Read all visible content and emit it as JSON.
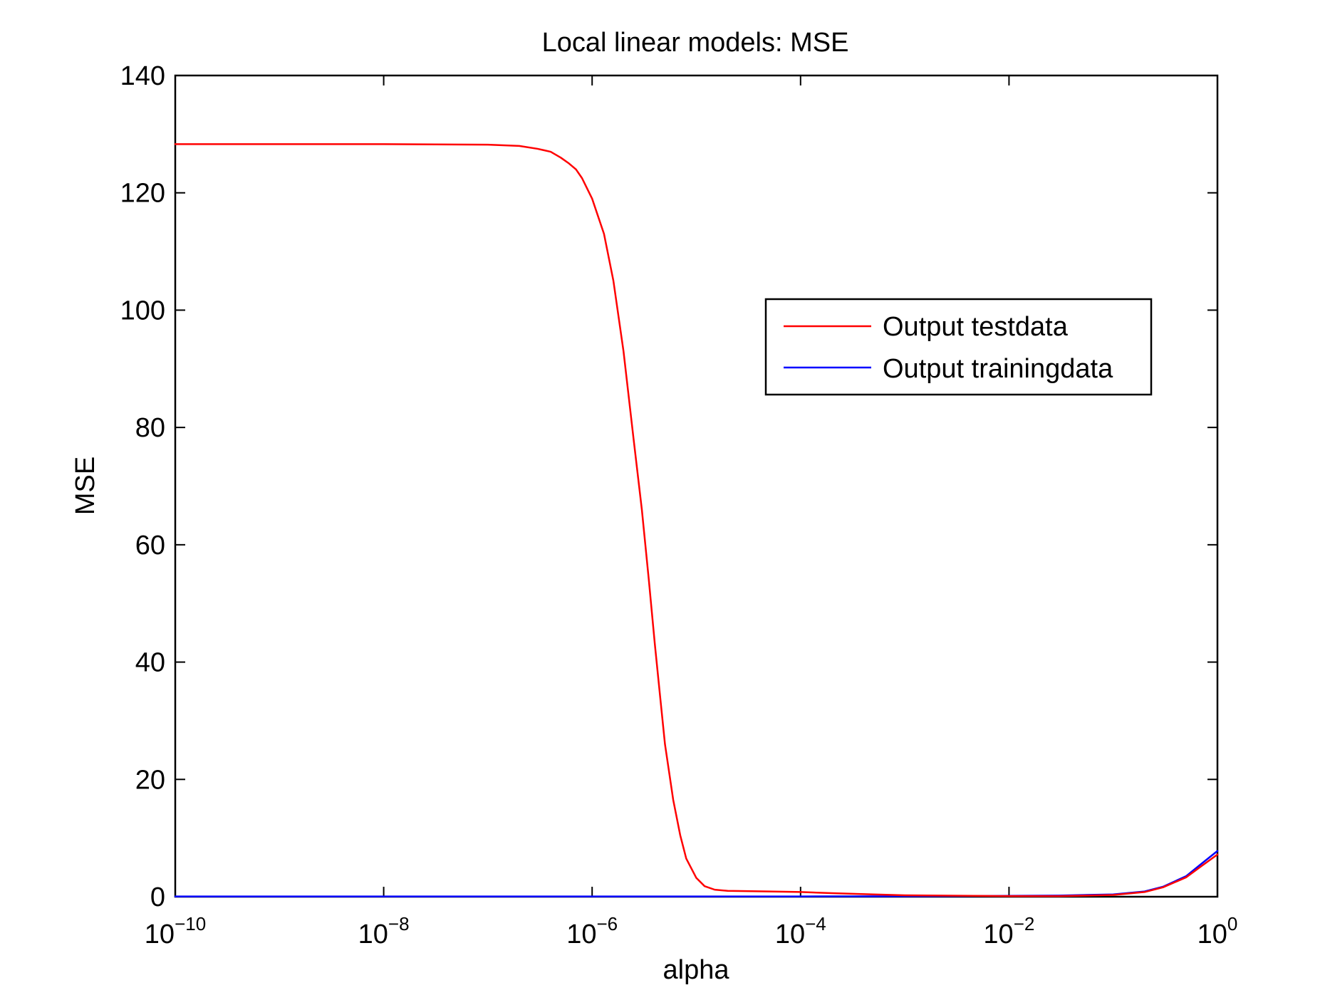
{
  "chart_data": {
    "type": "line",
    "title": "Local linear models: MSE",
    "xlabel": "alpha",
    "ylabel": "MSE",
    "xscale": "log",
    "xlim": [
      1e-10,
      1
    ],
    "ylim": [
      0,
      140
    ],
    "grid": false,
    "legend_position": "upper-right",
    "y_ticks": [
      "0",
      "20",
      "40",
      "60",
      "80",
      "100",
      "120",
      "140"
    ],
    "x_ticks": [
      {
        "base": "10",
        "exp": "−10"
      },
      {
        "base": "10",
        "exp": "−8"
      },
      {
        "base": "10",
        "exp": "−6"
      },
      {
        "base": "10",
        "exp": "−4"
      },
      {
        "base": "10",
        "exp": "−2"
      },
      {
        "base": "10",
        "exp": "0"
      }
    ],
    "series": [
      {
        "name": "Output testdata",
        "color": "#ff0000",
        "x": [
          1e-10,
          1e-09,
          1e-08,
          1e-07,
          2e-07,
          3e-07,
          4e-07,
          5e-07,
          6e-07,
          7e-07,
          8e-07,
          1e-06,
          1.3e-06,
          1.6e-06,
          2e-06,
          2.5e-06,
          3e-06,
          3.5e-06,
          4e-06,
          4.5e-06,
          5e-06,
          6e-06,
          7e-06,
          8e-06,
          1e-05,
          1.2e-05,
          1.5e-05,
          2e-05,
          3e-05,
          5e-05,
          0.0001,
          0.0002,
          0.0005,
          0.001,
          0.01,
          0.03,
          0.1,
          0.2,
          0.3,
          0.5,
          0.7,
          1.0
        ],
        "y": [
          128.3,
          128.3,
          128.3,
          128.2,
          128.0,
          127.5,
          127.0,
          126.0,
          125.0,
          124.0,
          122.5,
          119.0,
          113.0,
          105.0,
          93.0,
          78.0,
          66.0,
          54.0,
          43.0,
          34.0,
          26.0,
          16.5,
          10.5,
          6.5,
          3.2,
          1.8,
          1.2,
          1.0,
          0.95,
          0.9,
          0.8,
          0.6,
          0.4,
          0.25,
          0.1,
          0.1,
          0.3,
          0.8,
          1.6,
          3.3,
          5.2,
          7.2
        ]
      },
      {
        "name": "Output trainingdata",
        "color": "#0000ff",
        "x": [
          1e-10,
          1e-08,
          1e-06,
          1e-05,
          0.0001,
          0.001,
          0.01,
          0.03,
          0.1,
          0.2,
          0.3,
          0.5,
          0.7,
          1.0
        ],
        "y": [
          0.05,
          0.05,
          0.05,
          0.05,
          0.05,
          0.08,
          0.15,
          0.2,
          0.4,
          0.9,
          1.7,
          3.5,
          5.6,
          7.8
        ]
      }
    ]
  }
}
